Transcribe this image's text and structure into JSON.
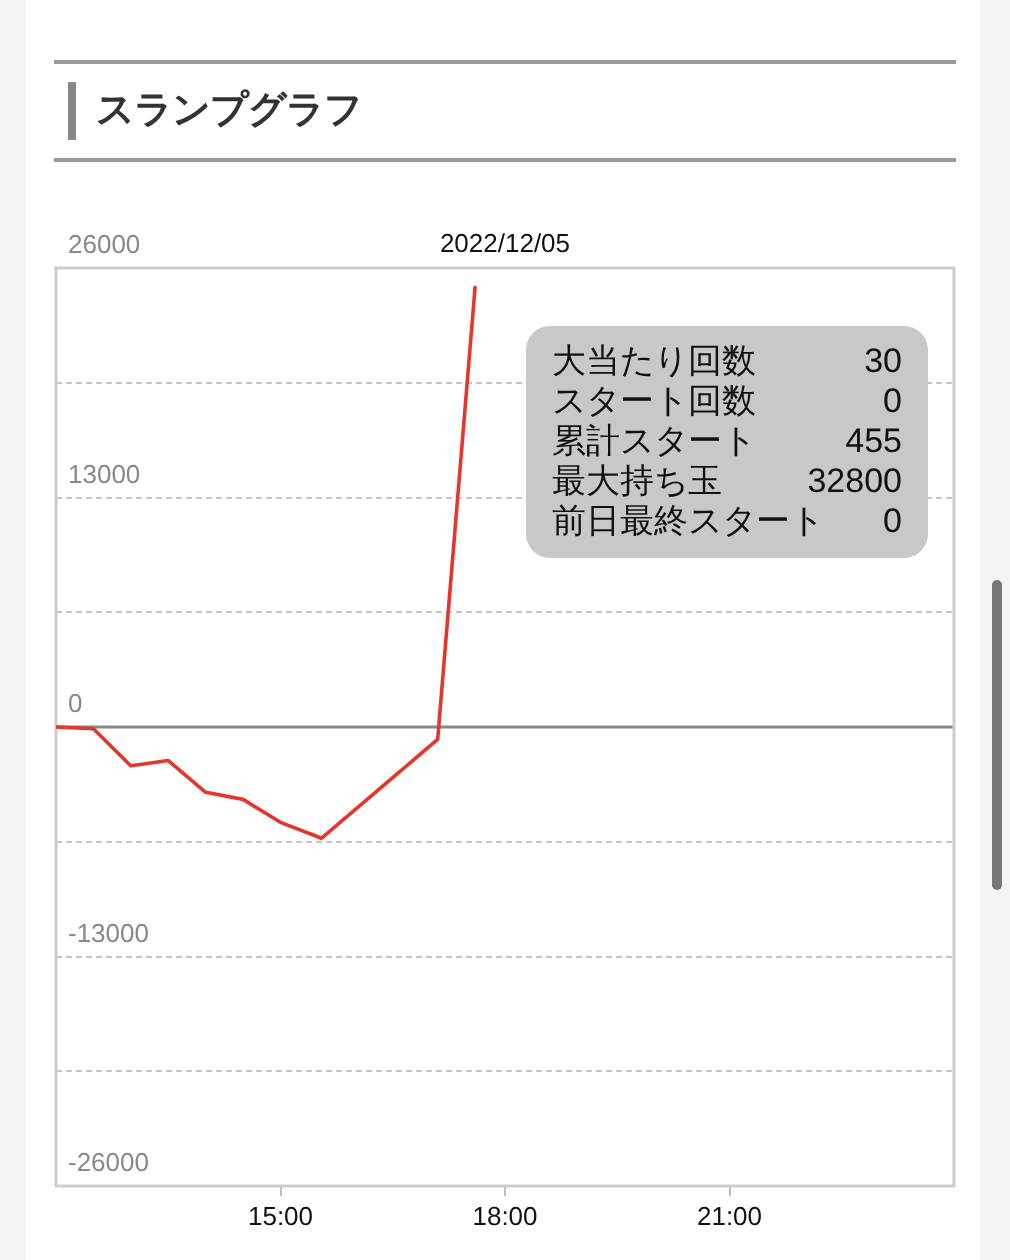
{
  "chart_data": {
    "type": "line",
    "title": "スランプグラフ",
    "subtitle": "2022/12/05",
    "x": [
      12,
      12.5,
      13,
      13.5,
      14,
      14.5,
      15,
      15.55,
      17.1,
      17.6
    ],
    "values": [
      0,
      -100,
      -2200,
      -1900,
      -3700,
      -4100,
      -5400,
      -6300,
      -700,
      24900
    ],
    "color": "#e8352b",
    "marker": "none",
    "xlim": [
      12,
      24
    ],
    "xticks": [
      {
        "value": 15,
        "label": "15:00"
      },
      {
        "value": 18,
        "label": "18:00"
      },
      {
        "value": 21,
        "label": "21:00"
      }
    ],
    "ylim": [
      -26000,
      26000
    ],
    "yticks": [
      -26000,
      {
        "value": -19500,
        "label": null
      },
      -13000,
      {
        "value": -6500,
        "label": null
      },
      0,
      {
        "value": 6500,
        "label": null
      },
      13000,
      {
        "value": 19500,
        "label": null
      },
      26000
    ],
    "grid": "y",
    "ref_lines": [
      {
        "axis": "y",
        "value": 0,
        "color": "#888888"
      }
    ],
    "annotations": [
      "大当たり回数 30",
      "スタート回数 0",
      "累計スタート 455",
      "最大持ち玉 32800",
      "前日最終スタート 0"
    ]
  }
}
